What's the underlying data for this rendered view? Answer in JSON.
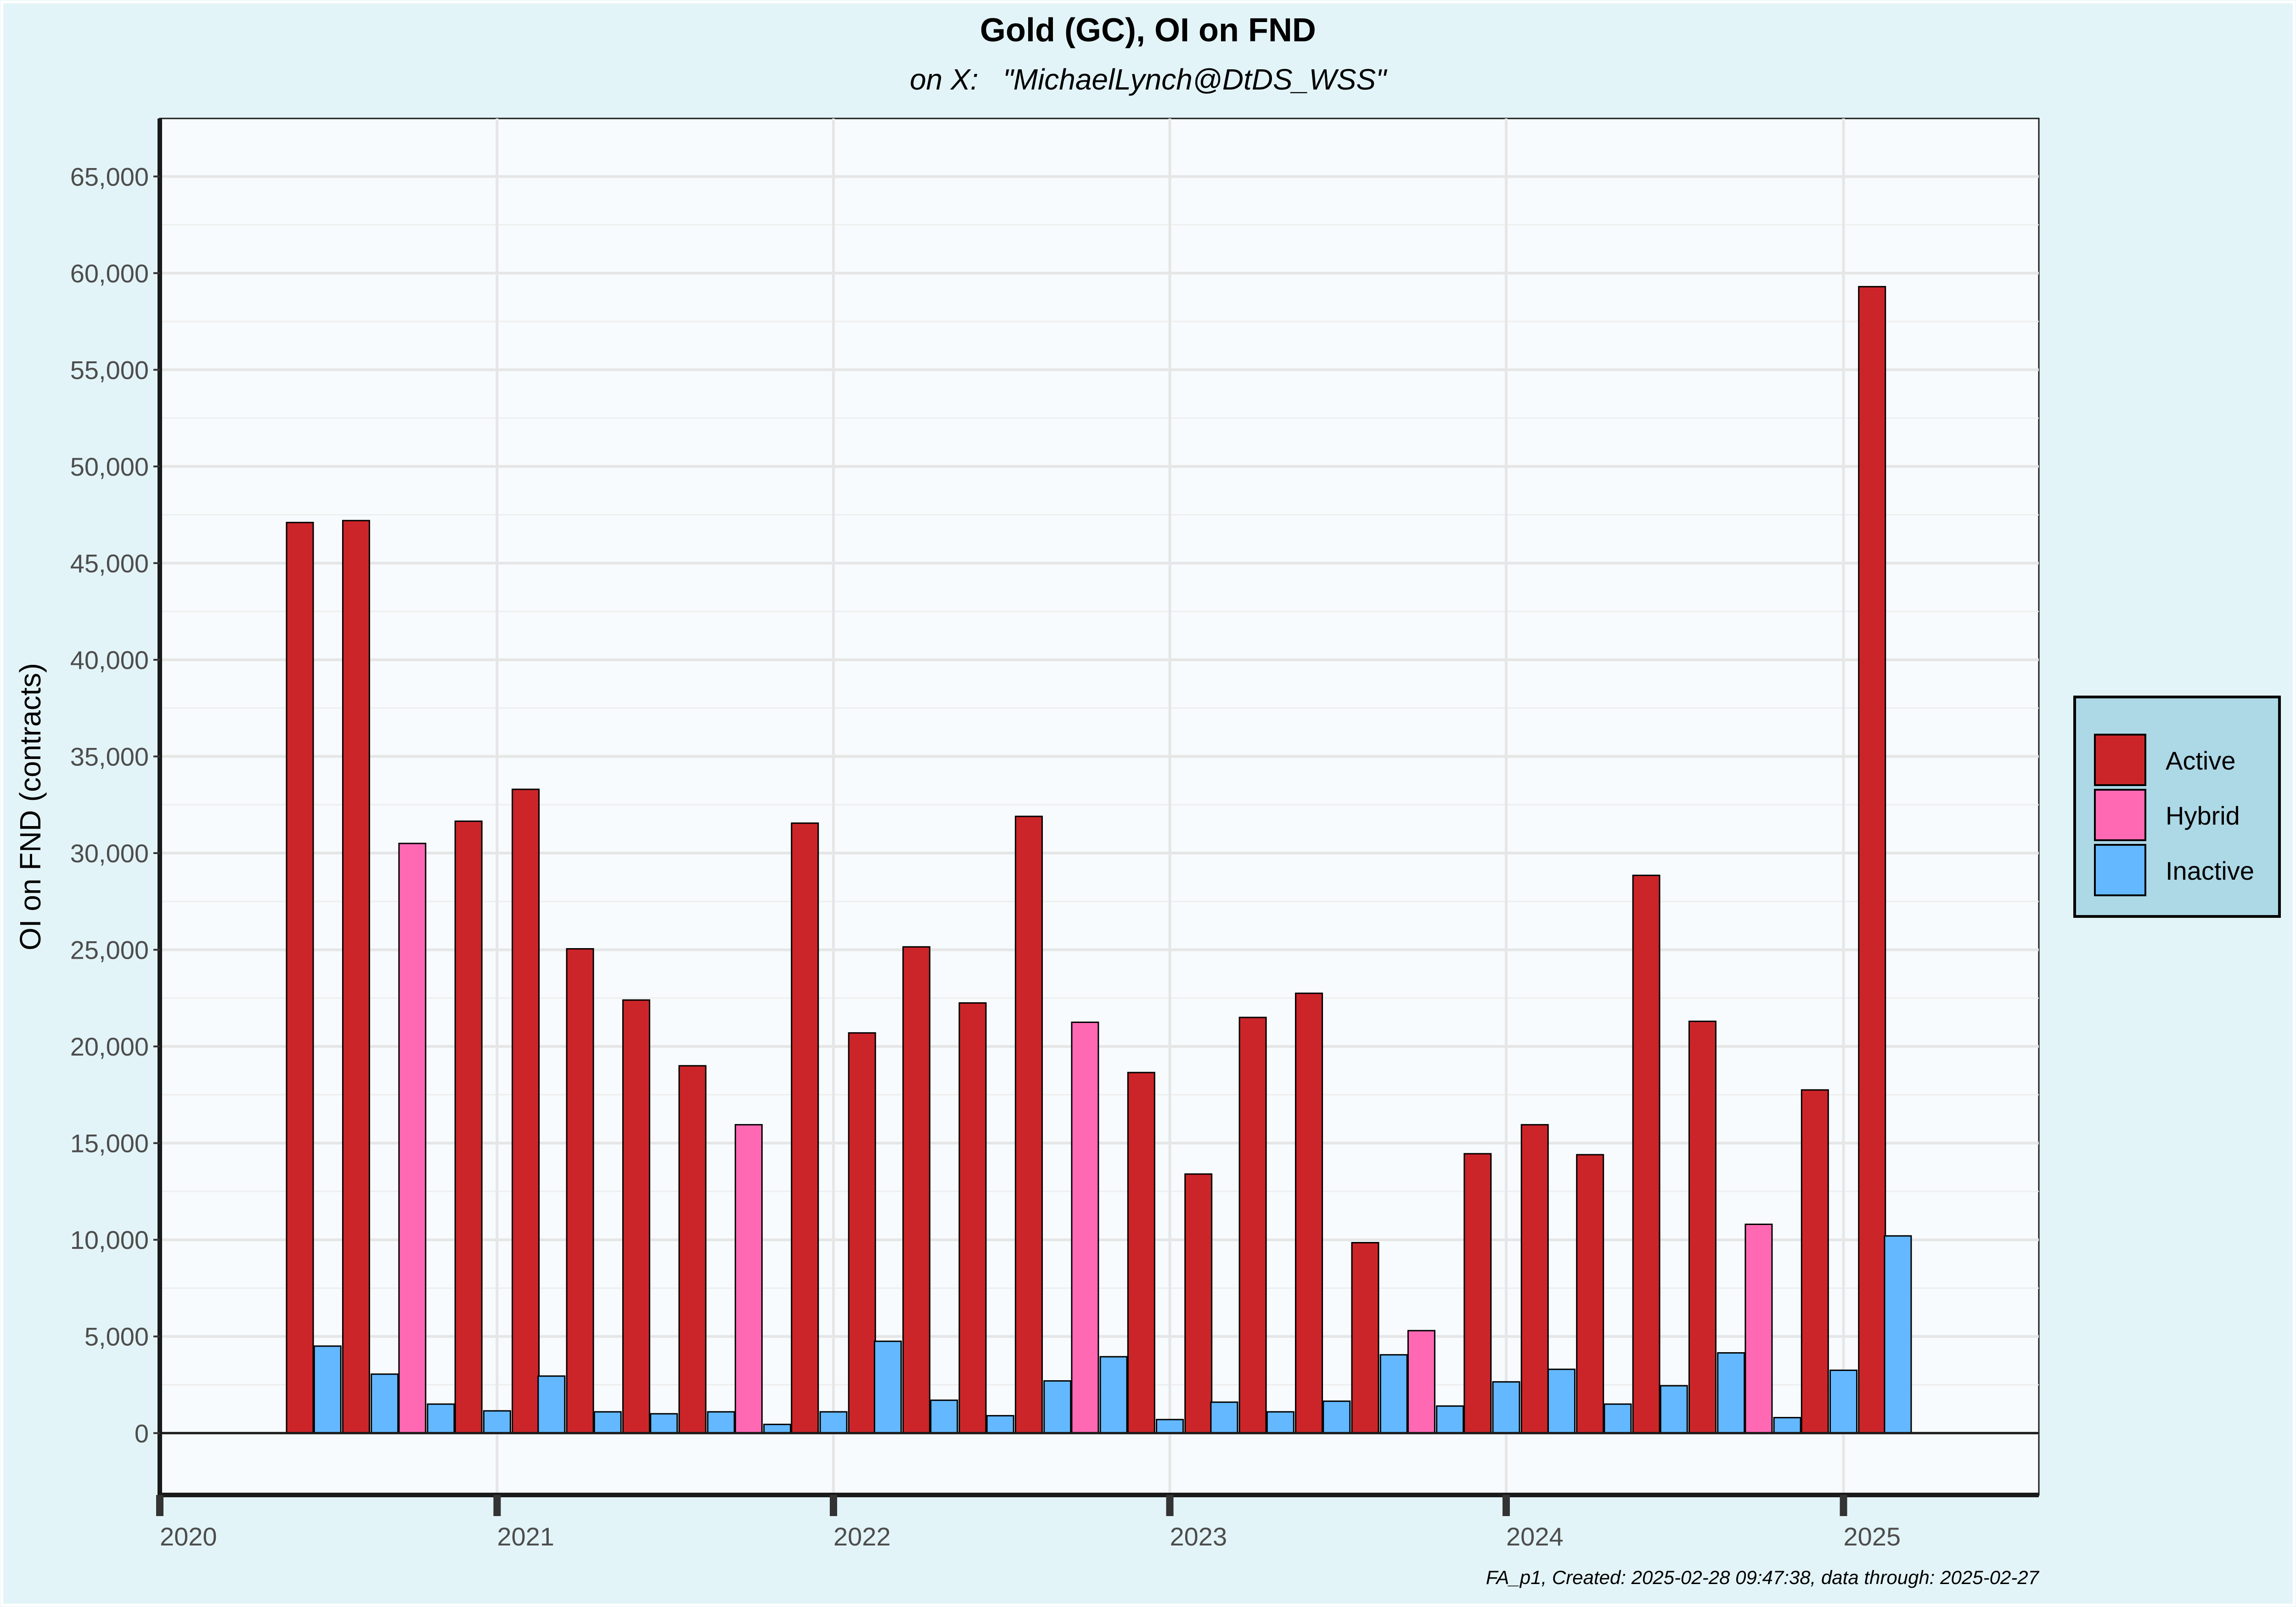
{
  "chart_data": {
    "type": "bar",
    "title": "Gold (GC), OI on FND",
    "subtitle": "on X:   \"MichaelLynch@DtDS_WSS\"",
    "ylabel": "OI on FND (contracts)",
    "xlabel": "",
    "caption": "FA_p1, Created: 2025-02-28 09:47:38, data through: 2025-02-27",
    "xlim": [
      "2020-01-01",
      "2025-08-01"
    ],
    "ylim": [
      -3200,
      68000
    ],
    "yticks": [
      0,
      5000,
      10000,
      15000,
      20000,
      25000,
      30000,
      35000,
      40000,
      45000,
      50000,
      55000,
      60000,
      65000
    ],
    "ytick_labels": [
      "0",
      "5,000",
      "10,000",
      "15,000",
      "20,000",
      "25,000",
      "30,000",
      "35,000",
      "40,000",
      "45,000",
      "50,000",
      "55,000",
      "60,000",
      "65,000"
    ],
    "xticks": [
      "2020-01-01",
      "2021-01-01",
      "2022-01-01",
      "2023-01-01",
      "2024-01-01",
      "2025-01-01"
    ],
    "xtick_labels": [
      "2020",
      "2021",
      "2022",
      "2023",
      "2024",
      "2025"
    ],
    "grid": true,
    "legend_position": "right",
    "series": [
      {
        "name": "Active",
        "color": "#cc2529"
      },
      {
        "name": "Hybrid",
        "color": "#ff69b4"
      },
      {
        "name": "Inactive",
        "color": "#63b8ff"
      }
    ],
    "bars": [
      {
        "date": "2020-06-01",
        "series": "Active",
        "value": 47100
      },
      {
        "date": "2020-07-01",
        "series": "Inactive",
        "value": 4500
      },
      {
        "date": "2020-08-01",
        "series": "Active",
        "value": 47200
      },
      {
        "date": "2020-09-01",
        "series": "Inactive",
        "value": 3050
      },
      {
        "date": "2020-10-01",
        "series": "Hybrid",
        "value": 30500
      },
      {
        "date": "2020-11-01",
        "series": "Inactive",
        "value": 1500
      },
      {
        "date": "2020-12-01",
        "series": "Active",
        "value": 31650
      },
      {
        "date": "2021-01-01",
        "series": "Inactive",
        "value": 1150
      },
      {
        "date": "2021-02-01",
        "series": "Active",
        "value": 33300
      },
      {
        "date": "2021-03-01",
        "series": "Inactive",
        "value": 2950
      },
      {
        "date": "2021-04-01",
        "series": "Active",
        "value": 25050
      },
      {
        "date": "2021-05-01",
        "series": "Inactive",
        "value": 1100
      },
      {
        "date": "2021-06-01",
        "series": "Active",
        "value": 22400
      },
      {
        "date": "2021-07-01",
        "series": "Inactive",
        "value": 1000
      },
      {
        "date": "2021-08-01",
        "series": "Active",
        "value": 19000
      },
      {
        "date": "2021-09-01",
        "series": "Inactive",
        "value": 1100
      },
      {
        "date": "2021-10-01",
        "series": "Hybrid",
        "value": 15950
      },
      {
        "date": "2021-11-01",
        "series": "Inactive",
        "value": 450
      },
      {
        "date": "2021-12-01",
        "series": "Active",
        "value": 31550
      },
      {
        "date": "2022-01-01",
        "series": "Inactive",
        "value": 1100
      },
      {
        "date": "2022-02-01",
        "series": "Active",
        "value": 20700
      },
      {
        "date": "2022-03-01",
        "series": "Inactive",
        "value": 4750
      },
      {
        "date": "2022-04-01",
        "series": "Active",
        "value": 25150
      },
      {
        "date": "2022-05-01",
        "series": "Inactive",
        "value": 1700
      },
      {
        "date": "2022-06-01",
        "series": "Active",
        "value": 22250
      },
      {
        "date": "2022-07-01",
        "series": "Inactive",
        "value": 900
      },
      {
        "date": "2022-08-01",
        "series": "Active",
        "value": 31900
      },
      {
        "date": "2022-09-01",
        "series": "Inactive",
        "value": 2700
      },
      {
        "date": "2022-10-01",
        "series": "Hybrid",
        "value": 21250
      },
      {
        "date": "2022-11-01",
        "series": "Inactive",
        "value": 3950
      },
      {
        "date": "2022-12-01",
        "series": "Active",
        "value": 18650
      },
      {
        "date": "2023-01-01",
        "series": "Inactive",
        "value": 700
      },
      {
        "date": "2023-02-01",
        "series": "Active",
        "value": 13400
      },
      {
        "date": "2023-03-01",
        "series": "Inactive",
        "value": 1600
      },
      {
        "date": "2023-04-01",
        "series": "Active",
        "value": 21500
      },
      {
        "date": "2023-05-01",
        "series": "Inactive",
        "value": 1100
      },
      {
        "date": "2023-06-01",
        "series": "Active",
        "value": 22750
      },
      {
        "date": "2023-07-01",
        "series": "Inactive",
        "value": 1650
      },
      {
        "date": "2023-08-01",
        "series": "Active",
        "value": 9850
      },
      {
        "date": "2023-09-01",
        "series": "Inactive",
        "value": 4050
      },
      {
        "date": "2023-10-01",
        "series": "Hybrid",
        "value": 5300
      },
      {
        "date": "2023-11-01",
        "series": "Inactive",
        "value": 1400
      },
      {
        "date": "2023-12-01",
        "series": "Active",
        "value": 14450
      },
      {
        "date": "2024-01-01",
        "series": "Inactive",
        "value": 2650
      },
      {
        "date": "2024-02-01",
        "series": "Active",
        "value": 15950
      },
      {
        "date": "2024-03-01",
        "series": "Inactive",
        "value": 3300
      },
      {
        "date": "2024-04-01",
        "series": "Active",
        "value": 14400
      },
      {
        "date": "2024-05-01",
        "series": "Inactive",
        "value": 1500
      },
      {
        "date": "2024-06-01",
        "series": "Active",
        "value": 28850
      },
      {
        "date": "2024-07-01",
        "series": "Inactive",
        "value": 2450
      },
      {
        "date": "2024-08-01",
        "series": "Active",
        "value": 21300
      },
      {
        "date": "2024-09-01",
        "series": "Inactive",
        "value": 4150
      },
      {
        "date": "2024-10-01",
        "series": "Hybrid",
        "value": 10800
      },
      {
        "date": "2024-11-01",
        "series": "Inactive",
        "value": 800
      },
      {
        "date": "2024-12-01",
        "series": "Active",
        "value": 17750
      },
      {
        "date": "2025-01-01",
        "series": "Inactive",
        "value": 3250
      },
      {
        "date": "2025-02-01",
        "series": "Active",
        "value": 59300
      },
      {
        "date": "2025-03-01",
        "series": "Inactive",
        "value": 10200
      }
    ]
  }
}
